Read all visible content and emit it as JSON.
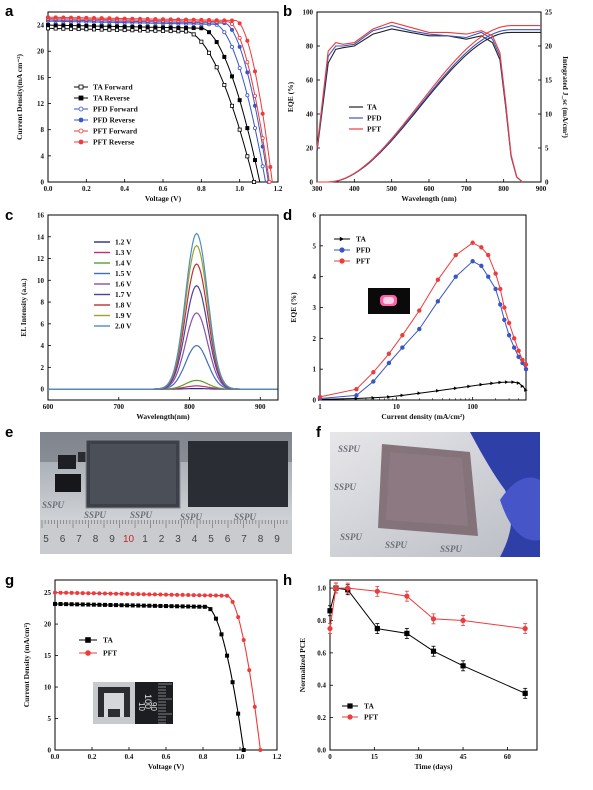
{
  "figure": {
    "panels": [
      "a",
      "b",
      "c",
      "d",
      "e",
      "f",
      "g",
      "h"
    ]
  },
  "photos": {
    "e": {
      "watermark": "SSPU",
      "ruler_numbers": [
        "5",
        "6",
        "7",
        "8",
        "9",
        "10",
        "1",
        "2",
        "3",
        "4",
        "5",
        "6",
        "7",
        "8",
        "9"
      ]
    },
    "f": {
      "watermark": "SSPU"
    },
    "g_inset": {
      "ruler_numbers": [
        "90",
        "100",
        "10"
      ]
    }
  },
  "chart_data": [
    {
      "id": "a",
      "type": "line",
      "xlabel": "Voltage (V)",
      "ylabel": "Current Density(mA cm⁻²)",
      "xlim": [
        0.0,
        1.2
      ],
      "ylim": [
        0,
        26
      ],
      "xticks": [
        "0.0",
        "0.2",
        "0.4",
        "0.6",
        "0.8",
        "1.0",
        "1.2"
      ],
      "yticks": [
        "0",
        "4",
        "8",
        "12",
        "16",
        "20",
        "24"
      ],
      "legend_position": "center-left",
      "series": [
        {
          "name": "TA  Forward",
          "color": "#000000",
          "marker": "open-square",
          "jsc": 23.5,
          "voc": 1.075,
          "vk": 0.72,
          "curv": 0.055
        },
        {
          "name": "TA  Reverse",
          "color": "#000000",
          "marker": "filled-square",
          "jsc": 24.0,
          "voc": 1.105,
          "vk": 0.8,
          "curv": 0.045
        },
        {
          "name": "PFD Forward",
          "color": "#3a55c8",
          "marker": "open-circle",
          "jsc": 24.6,
          "voc": 1.135,
          "vk": 0.87,
          "curv": 0.04
        },
        {
          "name": "PFD Reverse",
          "color": "#3a55c8",
          "marker": "filled-circle",
          "jsc": 24.8,
          "voc": 1.15,
          "vk": 0.92,
          "curv": 0.036
        },
        {
          "name": "PFT Forward",
          "color": "#ee3b3b",
          "marker": "open-circle",
          "jsc": 25.0,
          "voc": 1.155,
          "vk": 0.94,
          "curv": 0.033
        },
        {
          "name": "PFT Reverse",
          "color": "#ee3b3b",
          "marker": "filled-circle",
          "jsc": 25.2,
          "voc": 1.17,
          "vk": 0.98,
          "curv": 0.03
        }
      ]
    },
    {
      "id": "b",
      "type": "line",
      "xlabel": "Wavelength (nm)",
      "ylabel": "EQE (%)",
      "ylabel_right": "Integrated J_sc (mA/cm²)",
      "xlim": [
        300,
        900
      ],
      "ylim": [
        0,
        100
      ],
      "ylim_right": [
        0,
        25
      ],
      "xticks": [
        "300",
        "400",
        "500",
        "600",
        "700",
        "800",
        "900"
      ],
      "yticks": [
        "0",
        "20",
        "40",
        "60",
        "80",
        "100"
      ],
      "yticks_right": [
        "0",
        "5",
        "10",
        "15",
        "20",
        "25"
      ],
      "legend_position": "center-left",
      "series": [
        {
          "name": "TA",
          "color": "#222222",
          "eqe_x": [
            300,
            330,
            350,
            370,
            400,
            450,
            500,
            550,
            600,
            650,
            700,
            740,
            770,
            790,
            805,
            820,
            835,
            850
          ],
          "eqe_y": [
            18,
            70,
            78,
            79,
            80,
            87,
            90,
            88,
            86,
            86,
            84,
            86,
            82,
            72,
            45,
            15,
            3,
            0
          ],
          "jsc_end": 22.0
        },
        {
          "name": "PFD",
          "color": "#3a55c8",
          "eqe_x": [
            300,
            330,
            350,
            370,
            400,
            450,
            500,
            550,
            600,
            650,
            700,
            740,
            770,
            790,
            805,
            820,
            835,
            850
          ],
          "eqe_y": [
            19,
            74,
            80,
            80,
            81,
            89,
            92,
            89,
            87,
            86,
            85,
            88,
            84,
            74,
            46,
            15,
            3,
            0
          ],
          "jsc_end": 22.4
        },
        {
          "name": "PFT",
          "color": "#ee3b3b",
          "eqe_x": [
            300,
            330,
            350,
            370,
            400,
            450,
            500,
            550,
            600,
            650,
            700,
            740,
            770,
            790,
            805,
            820,
            835,
            850
          ],
          "eqe_y": [
            20,
            77,
            82,
            81,
            82,
            90,
            94,
            91,
            88,
            88,
            87,
            89,
            86,
            76,
            48,
            16,
            3,
            0
          ],
          "jsc_end": 23.0
        }
      ]
    },
    {
      "id": "c",
      "type": "line",
      "xlabel": "Wavelength(nm)",
      "ylabel": "EL Intensity (a.u.)",
      "xlim": [
        600,
        925
      ],
      "ylim": [
        -1,
        16
      ],
      "xticks": [
        "600",
        "700",
        "800",
        "900"
      ],
      "yticks": [
        "0",
        "2",
        "4",
        "6",
        "8",
        "10",
        "12",
        "14",
        "16"
      ],
      "legend_position": "top-left",
      "peak_wavelength": 810,
      "peak_width": 22,
      "series": [
        {
          "name": "1.2 V",
          "color": "#2b2b8c",
          "peak": 0.05
        },
        {
          "name": "1.3 V",
          "color": "#c0306a",
          "peak": 0.3
        },
        {
          "name": "1.4 V",
          "color": "#5aa02c",
          "peak": 0.8
        },
        {
          "name": "1.5 V",
          "color": "#3b6fbf",
          "peak": 4.0
        },
        {
          "name": "1.6 V",
          "color": "#8a4fb0",
          "peak": 7.0
        },
        {
          "name": "1.7 V",
          "color": "#4b3fa0",
          "peak": 9.5
        },
        {
          "name": "1.8 V",
          "color": "#c03030",
          "peak": 11.5
        },
        {
          "name": "1.9 V",
          "color": "#a0a030",
          "peak": 13.2
        },
        {
          "name": "2.0 V",
          "color": "#4a8fc4",
          "peak": 14.3
        }
      ]
    },
    {
      "id": "d",
      "type": "scatter",
      "xlabel": "Current density (mA/cm²)",
      "ylabel": "EQE (%)",
      "xscale": "log",
      "xlim": [
        1,
        500
      ],
      "ylim": [
        0,
        6
      ],
      "xticks": [
        "1",
        "10",
        "100"
      ],
      "yticks": [
        "0",
        "1",
        "2",
        "3",
        "4",
        "5",
        "6"
      ],
      "legend_position": "top-left",
      "series": [
        {
          "name": "TA",
          "color": "#000000",
          "marker": "triangle-right",
          "x": [
            1,
            3,
            5,
            8,
            12,
            20,
            35,
            60,
            90,
            130,
            180,
            230,
            280,
            340,
            400,
            450,
            500
          ],
          "y": [
            0.02,
            0.05,
            0.07,
            0.1,
            0.15,
            0.22,
            0.3,
            0.38,
            0.44,
            0.5,
            0.54,
            0.57,
            0.58,
            0.58,
            0.55,
            0.45,
            0.32
          ]
        },
        {
          "name": "PFD",
          "color": "#3a55c8",
          "marker": "circle",
          "x": [
            1,
            3,
            5,
            8,
            12,
            20,
            35,
            60,
            100,
            130,
            160,
            200,
            230,
            260,
            300,
            350,
            400,
            450,
            500
          ],
          "y": [
            0.05,
            0.15,
            0.6,
            1.2,
            1.7,
            2.3,
            3.2,
            4.0,
            4.5,
            4.35,
            4.0,
            3.6,
            3.1,
            2.6,
            2.1,
            1.7,
            1.4,
            1.2,
            1.0
          ]
        },
        {
          "name": "PFT",
          "color": "#ee3b3b",
          "marker": "circle",
          "x": [
            1,
            3,
            5,
            8,
            12,
            20,
            35,
            60,
            100,
            130,
            160,
            200,
            230,
            260,
            300,
            350,
            400,
            450,
            500
          ],
          "y": [
            0.1,
            0.35,
            0.9,
            1.5,
            2.1,
            2.9,
            3.9,
            4.7,
            5.1,
            4.95,
            4.7,
            4.1,
            3.6,
            3.0,
            2.5,
            2.0,
            1.6,
            1.3,
            1.15
          ]
        }
      ]
    },
    {
      "id": "g",
      "type": "line",
      "xlabel": "Voltage (V)",
      "ylabel": "Current Density (mA/cm²)",
      "xlim": [
        0.0,
        1.2
      ],
      "ylim": [
        0,
        27
      ],
      "xticks": [
        "0.0",
        "0.2",
        "0.4",
        "0.6",
        "0.8",
        "1.0",
        "1.2"
      ],
      "yticks": [
        "0",
        "5",
        "10",
        "15",
        "20",
        "25"
      ],
      "legend_position": "center-left",
      "series": [
        {
          "name": "TA",
          "color": "#000000",
          "marker": "square",
          "jsc": 23.2,
          "voc": 1.02,
          "vk": 0.82,
          "curv": 0.035
        },
        {
          "name": "PFT",
          "color": "#ee3b3b",
          "marker": "circle",
          "jsc": 25.0,
          "voc": 1.11,
          "vk": 0.93,
          "curv": 0.035
        }
      ]
    },
    {
      "id": "h",
      "type": "line",
      "xlabel": "Time (days)",
      "ylabel": "Normalized PCE",
      "xlim": [
        0,
        70
      ],
      "ylim": [
        0.0,
        1.05
      ],
      "xticks": [
        "0",
        "15",
        "30",
        "45",
        "60"
      ],
      "yticks": [
        "0.0",
        "0.2",
        "0.4",
        "0.6",
        "0.8",
        "1.0"
      ],
      "legend_position": "bottom-left",
      "series": [
        {
          "name": "TA",
          "color": "#000000",
          "marker": "square",
          "x": [
            0,
            2,
            6,
            16,
            26,
            35,
            45,
            66
          ],
          "y": [
            0.86,
            1.0,
            0.99,
            0.75,
            0.72,
            0.61,
            0.52,
            0.35
          ]
        },
        {
          "name": "PFT",
          "color": "#ee3b3b",
          "marker": "circle",
          "x": [
            0,
            2,
            6,
            16,
            26,
            35,
            45,
            66
          ],
          "y": [
            0.75,
            1.0,
            1.0,
            0.98,
            0.95,
            0.81,
            0.8,
            0.75
          ]
        }
      ]
    }
  ]
}
